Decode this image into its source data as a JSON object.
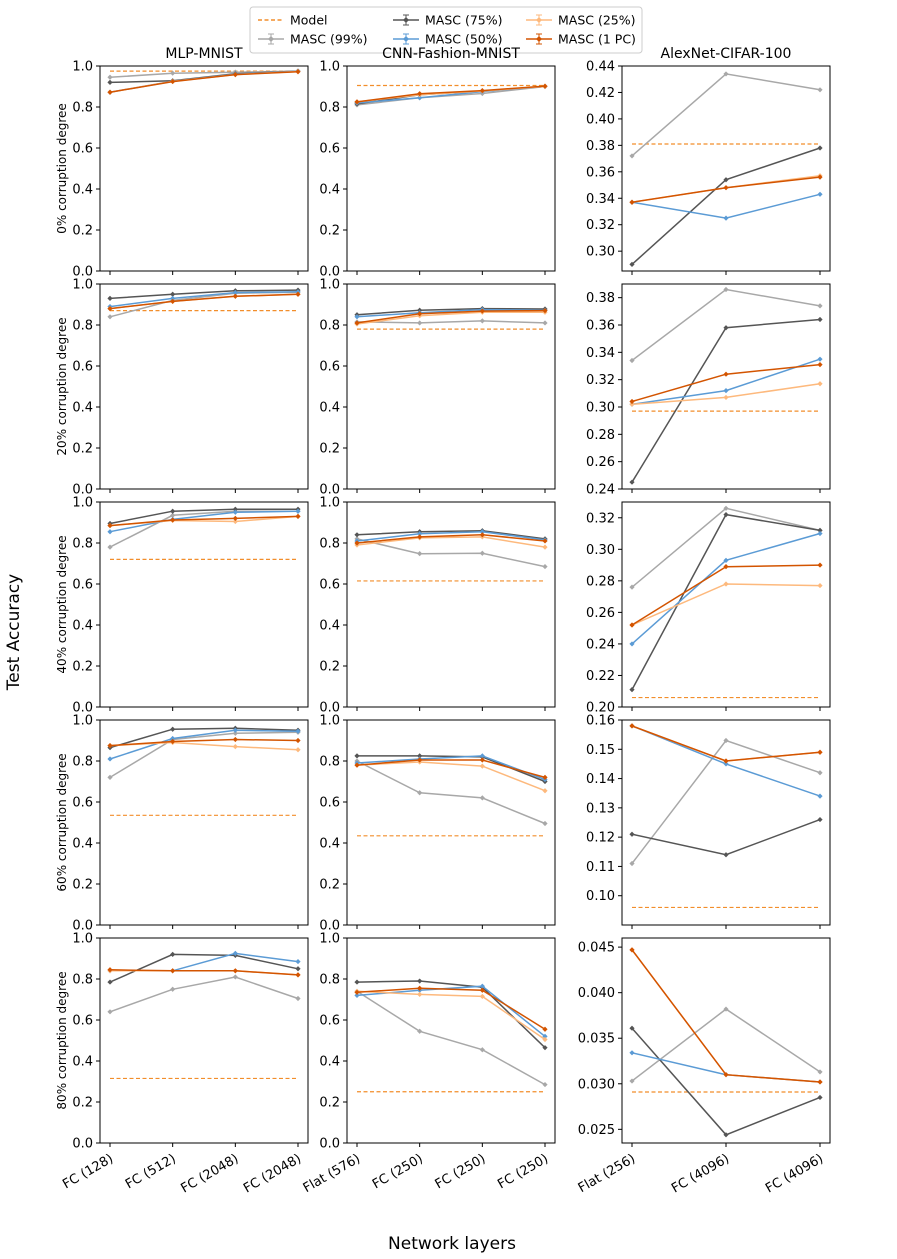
{
  "figure": {
    "ylabel": "Test Accuracy",
    "xlabel": "Network layers"
  },
  "legend": [
    {
      "label": "Model",
      "color": "#f28e2b",
      "style": "dashed"
    },
    {
      "label": "MASC (99%)",
      "color": "#a8a8a8",
      "style": "marker"
    },
    {
      "label": "MASC (75%)",
      "color": "#555555",
      "style": "marker"
    },
    {
      "label": "MASC (50%)",
      "color": "#5b9bd5",
      "style": "marker"
    },
    {
      "label": "MASC (25%)",
      "color": "#fdb97d",
      "style": "marker"
    },
    {
      "label": "MASC (1 PC)",
      "color": "#d35400",
      "style": "marker"
    }
  ],
  "columns": [
    {
      "title": "MLP-MNIST",
      "xticks": [
        "FC (128)",
        "FC (512)",
        "FC (2048)",
        "FC (2048)"
      ]
    },
    {
      "title": "CNN-Fashion-MNIST",
      "xticks": [
        "Flat (576)",
        "FC (250)",
        "FC (250)",
        "FC (250)"
      ]
    },
    {
      "title": "AlexNet-CIFAR-100",
      "xticks": [
        "Flat (256)",
        "FC (4096)",
        "FC (4096)"
      ]
    }
  ],
  "rows": [
    {
      "label": "0% corruption degree"
    },
    {
      "label": "20% corruption degree"
    },
    {
      "label": "40% corruption degree"
    },
    {
      "label": "60% corruption degree"
    },
    {
      "label": "80% corruption degree"
    }
  ],
  "chart_data": [
    {
      "type": "line",
      "row": 0,
      "col": 0,
      "title": "MLP-MNIST",
      "ylabel": "0% corruption degree",
      "ylim": [
        0,
        1.0
      ],
      "yticks": [
        "0.0",
        "0.2",
        "0.4",
        "0.6",
        "0.8",
        "1.0"
      ],
      "model": 0.975,
      "series": [
        {
          "name": "MASC (99%)",
          "values": [
            0.945,
            0.965,
            0.97,
            0.975
          ]
        },
        {
          "name": "MASC (75%)",
          "values": [
            0.92,
            0.928,
            0.962,
            0.975
          ]
        },
        {
          "name": "MASC (50%)",
          "values": [
            0.872,
            0.926,
            0.96,
            0.974
          ]
        },
        {
          "name": "MASC (25%)",
          "values": [
            0.872,
            0.925,
            0.958,
            0.973
          ]
        },
        {
          "name": "MASC (1 PC)",
          "values": [
            0.872,
            0.924,
            0.958,
            0.972
          ]
        }
      ]
    },
    {
      "type": "line",
      "row": 0,
      "col": 1,
      "title": "CNN-Fashion-MNIST",
      "ylabel": "0% corruption degree",
      "ylim": [
        0,
        1.0
      ],
      "yticks": [
        "0.0",
        "0.2",
        "0.4",
        "0.6",
        "0.8",
        "1.0"
      ],
      "model": 0.905,
      "series": [
        {
          "name": "MASC (99%)",
          "values": [
            0.81,
            0.845,
            0.866,
            0.9
          ]
        },
        {
          "name": "MASC (75%)",
          "values": [
            0.815,
            0.86,
            0.878,
            0.9
          ]
        },
        {
          "name": "MASC (50%)",
          "values": [
            0.82,
            0.845,
            0.875,
            0.9
          ]
        },
        {
          "name": "MASC (25%)",
          "values": [
            0.825,
            0.86,
            0.878,
            0.9
          ]
        },
        {
          "name": "MASC (1 PC)",
          "values": [
            0.825,
            0.865,
            0.88,
            0.902
          ]
        }
      ]
    },
    {
      "type": "line",
      "row": 0,
      "col": 2,
      "title": "AlexNet-CIFAR-100",
      "ylabel": "0% corruption degree",
      "ylim": [
        0.285,
        0.44
      ],
      "yticks": [
        "0.30",
        "0.32",
        "0.34",
        "0.36",
        "0.38",
        "0.40",
        "0.42",
        "0.44"
      ],
      "model": 0.381,
      "series": [
        {
          "name": "MASC (99%)",
          "values": [
            0.372,
            0.434,
            0.422
          ]
        },
        {
          "name": "MASC (75%)",
          "values": [
            0.29,
            0.354,
            0.378
          ]
        },
        {
          "name": "MASC (50%)",
          "values": [
            0.337,
            0.325,
            0.343
          ]
        },
        {
          "name": "MASC (25%)",
          "values": [
            0.337,
            0.348,
            0.357
          ]
        },
        {
          "name": "MASC (1 PC)",
          "values": [
            0.337,
            0.348,
            0.356
          ]
        }
      ]
    },
    {
      "type": "line",
      "row": 1,
      "col": 0,
      "ylabel": "20% corruption degree",
      "ylim": [
        0,
        1.0
      ],
      "yticks": [
        "0.0",
        "0.2",
        "0.4",
        "0.6",
        "0.8",
        "1.0"
      ],
      "model": 0.87,
      "series": [
        {
          "name": "MASC (99%)",
          "values": [
            0.84,
            0.92,
            0.955,
            0.96
          ]
        },
        {
          "name": "MASC (75%)",
          "values": [
            0.93,
            0.95,
            0.967,
            0.97
          ]
        },
        {
          "name": "MASC (50%)",
          "values": [
            0.89,
            0.93,
            0.958,
            0.962
          ]
        },
        {
          "name": "MASC (25%)",
          "values": [
            0.88,
            0.915,
            0.94,
            0.95
          ]
        },
        {
          "name": "MASC (1 PC)",
          "values": [
            0.88,
            0.915,
            0.94,
            0.95
          ]
        }
      ]
    },
    {
      "type": "line",
      "row": 1,
      "col": 1,
      "ylabel": "20% corruption degree",
      "ylim": [
        0,
        1.0
      ],
      "yticks": [
        "0.0",
        "0.2",
        "0.4",
        "0.6",
        "0.8",
        "1.0"
      ],
      "model": 0.78,
      "series": [
        {
          "name": "MASC (99%)",
          "values": [
            0.815,
            0.81,
            0.82,
            0.81
          ]
        },
        {
          "name": "MASC (75%)",
          "values": [
            0.85,
            0.872,
            0.88,
            0.878
          ]
        },
        {
          "name": "MASC (50%)",
          "values": [
            0.84,
            0.86,
            0.875,
            0.872
          ]
        },
        {
          "name": "MASC (25%)",
          "values": [
            0.805,
            0.845,
            0.862,
            0.862
          ]
        },
        {
          "name": "MASC (1 PC)",
          "values": [
            0.81,
            0.855,
            0.868,
            0.87
          ]
        }
      ]
    },
    {
      "type": "line",
      "row": 1,
      "col": 2,
      "ylabel": "20% corruption degree",
      "ylim": [
        0.24,
        0.39
      ],
      "yticks": [
        "0.24",
        "0.26",
        "0.28",
        "0.30",
        "0.32",
        "0.34",
        "0.36",
        "0.38"
      ],
      "model": 0.297,
      "series": [
        {
          "name": "MASC (99%)",
          "values": [
            0.334,
            0.386,
            0.374
          ]
        },
        {
          "name": "MASC (75%)",
          "values": [
            0.245,
            0.358,
            0.364
          ]
        },
        {
          "name": "MASC (50%)",
          "values": [
            0.302,
            0.312,
            0.335
          ]
        },
        {
          "name": "MASC (25%)",
          "values": [
            0.302,
            0.307,
            0.317
          ]
        },
        {
          "name": "MASC (1 PC)",
          "values": [
            0.304,
            0.324,
            0.331
          ]
        }
      ]
    },
    {
      "type": "line",
      "row": 2,
      "col": 0,
      "ylabel": "40% corruption degree",
      "ylim": [
        0,
        1.0
      ],
      "yticks": [
        "0.0",
        "0.2",
        "0.4",
        "0.6",
        "0.8",
        "1.0"
      ],
      "model": 0.72,
      "series": [
        {
          "name": "MASC (99%)",
          "values": [
            0.78,
            0.935,
            0.955,
            0.955
          ]
        },
        {
          "name": "MASC (75%)",
          "values": [
            0.895,
            0.955,
            0.965,
            0.965
          ]
        },
        {
          "name": "MASC (50%)",
          "values": [
            0.855,
            0.915,
            0.95,
            0.955
          ]
        },
        {
          "name": "MASC (25%)",
          "values": [
            0.885,
            0.91,
            0.905,
            0.93
          ]
        },
        {
          "name": "MASC (1 PC)",
          "values": [
            0.885,
            0.912,
            0.92,
            0.93
          ]
        }
      ]
    },
    {
      "type": "line",
      "row": 2,
      "col": 1,
      "ylabel": "40% corruption degree",
      "ylim": [
        0,
        1.0
      ],
      "yticks": [
        "0.0",
        "0.2",
        "0.4",
        "0.6",
        "0.8",
        "1.0"
      ],
      "model": 0.615,
      "series": [
        {
          "name": "MASC (99%)",
          "values": [
            0.82,
            0.748,
            0.75,
            0.685
          ]
        },
        {
          "name": "MASC (75%)",
          "values": [
            0.84,
            0.855,
            0.86,
            0.82
          ]
        },
        {
          "name": "MASC (50%)",
          "values": [
            0.81,
            0.845,
            0.855,
            0.815
          ]
        },
        {
          "name": "MASC (25%)",
          "values": [
            0.79,
            0.825,
            0.83,
            0.78
          ]
        },
        {
          "name": "MASC (1 PC)",
          "values": [
            0.8,
            0.83,
            0.84,
            0.81
          ]
        }
      ]
    },
    {
      "type": "line",
      "row": 2,
      "col": 2,
      "ylabel": "40% corruption degree",
      "ylim": [
        0.2,
        0.33
      ],
      "yticks": [
        "0.20",
        "0.22",
        "0.24",
        "0.26",
        "0.28",
        "0.30",
        "0.32"
      ],
      "model": 0.206,
      "series": [
        {
          "name": "MASC (99%)",
          "values": [
            0.276,
            0.326,
            0.312
          ]
        },
        {
          "name": "MASC (75%)",
          "values": [
            0.211,
            0.322,
            0.312
          ]
        },
        {
          "name": "MASC (50%)",
          "values": [
            0.24,
            0.293,
            0.31
          ]
        },
        {
          "name": "MASC (25%)",
          "values": [
            0.252,
            0.278,
            0.277
          ]
        },
        {
          "name": "MASC (1 PC)",
          "values": [
            0.252,
            0.289,
            0.29
          ]
        }
      ]
    },
    {
      "type": "line",
      "row": 3,
      "col": 0,
      "ylabel": "60% corruption degree",
      "ylim": [
        0,
        1.0
      ],
      "yticks": [
        "0.0",
        "0.2",
        "0.4",
        "0.6",
        "0.8",
        "1.0"
      ],
      "model": 0.535,
      "series": [
        {
          "name": "MASC (99%)",
          "values": [
            0.72,
            0.905,
            0.935,
            0.94
          ]
        },
        {
          "name": "MASC (75%)",
          "values": [
            0.865,
            0.955,
            0.96,
            0.95
          ]
        },
        {
          "name": "MASC (50%)",
          "values": [
            0.81,
            0.91,
            0.95,
            0.945
          ]
        },
        {
          "name": "MASC (25%)",
          "values": [
            0.875,
            0.89,
            0.87,
            0.855
          ]
        },
        {
          "name": "MASC (1 PC)",
          "values": [
            0.875,
            0.895,
            0.905,
            0.9
          ]
        }
      ]
    },
    {
      "type": "line",
      "row": 3,
      "col": 1,
      "ylabel": "60% corruption degree",
      "ylim": [
        0,
        1.0
      ],
      "yticks": [
        "0.0",
        "0.2",
        "0.4",
        "0.6",
        "0.8",
        "1.0"
      ],
      "model": 0.435,
      "series": [
        {
          "name": "MASC (99%)",
          "values": [
            0.8,
            0.645,
            0.62,
            0.495
          ]
        },
        {
          "name": "MASC (75%)",
          "values": [
            0.825,
            0.825,
            0.82,
            0.7
          ]
        },
        {
          "name": "MASC (50%)",
          "values": [
            0.79,
            0.81,
            0.825,
            0.71
          ]
        },
        {
          "name": "MASC (25%)",
          "values": [
            0.78,
            0.795,
            0.775,
            0.655
          ]
        },
        {
          "name": "MASC (1 PC)",
          "values": [
            0.78,
            0.805,
            0.805,
            0.72
          ]
        }
      ]
    },
    {
      "type": "line",
      "row": 3,
      "col": 2,
      "ylabel": "60% corruption degree",
      "ylim": [
        0.09,
        0.16
      ],
      "yticks": [
        "0.10",
        "0.11",
        "0.12",
        "0.13",
        "0.14",
        "0.15",
        "0.16"
      ],
      "model": 0.096,
      "series": [
        {
          "name": "MASC (99%)",
          "values": [
            0.111,
            0.153,
            0.142
          ]
        },
        {
          "name": "MASC (75%)",
          "values": [
            0.121,
            0.114,
            0.126
          ]
        },
        {
          "name": "MASC (50%)",
          "values": [
            0.158,
            0.145,
            0.134
          ]
        },
        {
          "name": "MASC (25%)",
          "values": [
            0.158,
            0.146,
            0.149
          ]
        },
        {
          "name": "MASC (1 PC)",
          "values": [
            0.158,
            0.146,
            0.149
          ]
        }
      ]
    },
    {
      "type": "line",
      "row": 4,
      "col": 0,
      "ylabel": "80% corruption degree",
      "ylim": [
        0,
        1.0
      ],
      "yticks": [
        "0.0",
        "0.2",
        "0.4",
        "0.6",
        "0.8",
        "1.0"
      ],
      "model": 0.315,
      "series": [
        {
          "name": "MASC (99%)",
          "values": [
            0.64,
            0.75,
            0.81,
            0.705
          ]
        },
        {
          "name": "MASC (75%)",
          "values": [
            0.785,
            0.92,
            0.915,
            0.85
          ]
        },
        {
          "name": "MASC (50%)",
          "values": [
            0.84,
            0.84,
            0.925,
            0.885
          ]
        },
        {
          "name": "MASC (25%)",
          "values": [
            0.84,
            0.84,
            0.84,
            0.82
          ]
        },
        {
          "name": "MASC (1 PC)",
          "values": [
            0.845,
            0.84,
            0.84,
            0.82
          ]
        }
      ]
    },
    {
      "type": "line",
      "row": 4,
      "col": 1,
      "ylabel": "80% corruption degree",
      "ylim": [
        0,
        1.0
      ],
      "yticks": [
        "0.0",
        "0.2",
        "0.4",
        "0.6",
        "0.8",
        "1.0"
      ],
      "model": 0.25,
      "series": [
        {
          "name": "MASC (99%)",
          "values": [
            0.74,
            0.545,
            0.455,
            0.285
          ]
        },
        {
          "name": "MASC (75%)",
          "values": [
            0.785,
            0.79,
            0.76,
            0.465
          ]
        },
        {
          "name": "MASC (50%)",
          "values": [
            0.72,
            0.745,
            0.765,
            0.52
          ]
        },
        {
          "name": "MASC (25%)",
          "values": [
            0.74,
            0.725,
            0.715,
            0.505
          ]
        },
        {
          "name": "MASC (1 PC)",
          "values": [
            0.735,
            0.755,
            0.745,
            0.555
          ]
        }
      ]
    },
    {
      "type": "line",
      "row": 4,
      "col": 2,
      "ylabel": "80% corruption degree",
      "ylim": [
        0.0235,
        0.046
      ],
      "yticks": [
        "0.025",
        "0.030",
        "0.035",
        "0.040",
        "0.045"
      ],
      "model": 0.0291,
      "series": [
        {
          "name": "MASC (99%)",
          "values": [
            0.0303,
            0.0382,
            0.0313
          ]
        },
        {
          "name": "MASC (75%)",
          "values": [
            0.0361,
            0.0244,
            0.0285
          ]
        },
        {
          "name": "MASC (50%)",
          "values": [
            0.0334,
            0.031,
            0.0302
          ]
        },
        {
          "name": "MASC (25%)",
          "values": [
            0.0447,
            0.031,
            0.0302
          ]
        },
        {
          "name": "MASC (1 PC)",
          "values": [
            0.0447,
            0.031,
            0.0302
          ]
        }
      ]
    }
  ]
}
